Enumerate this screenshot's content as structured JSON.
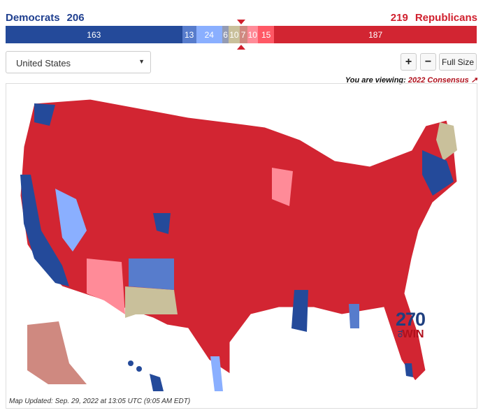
{
  "header": {
    "dem_label": "Democrats",
    "dem_total": "206",
    "rep_total": "219",
    "rep_label": "Republicans"
  },
  "bar": [
    {
      "value": 163,
      "label": "163",
      "color": "#244a9a"
    },
    {
      "value": 13,
      "label": "13",
      "color": "#577ccc"
    },
    {
      "value": 24,
      "label": "24",
      "color": "#8aafff"
    },
    {
      "value": 6,
      "label": "6",
      "color": "#949bb3"
    },
    {
      "value": 10,
      "label": "10",
      "color": "#c9c09b"
    },
    {
      "value": 7,
      "label": "7",
      "color": "#cf8980"
    },
    {
      "value": 10,
      "label": "10",
      "color": "#ff8b98"
    },
    {
      "value": 15,
      "label": "15",
      "color": "#ff5865"
    },
    {
      "value": 187,
      "label": "187",
      "color": "#d22532"
    }
  ],
  "controls": {
    "region_select": "United States",
    "zoom_in": "+",
    "zoom_out": "−",
    "full_size": "Full Size"
  },
  "viewing": {
    "prefix": "You are viewing:",
    "map_name": "2022 Consensus",
    "icon": "external-link-icon"
  },
  "map": {
    "updated": "Map Updated: Sep. 29, 2022 at 13:05 UTC (9:05 AM EDT)",
    "logo_number": "270",
    "logo_to": "TO",
    "logo_win": "WIN"
  }
}
